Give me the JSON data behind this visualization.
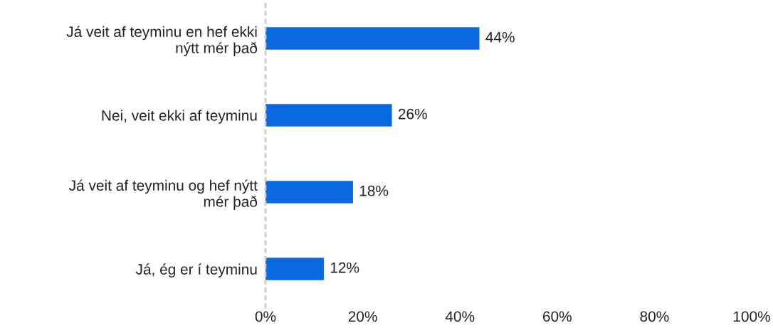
{
  "chart_data": {
    "type": "bar",
    "orientation": "horizontal",
    "categories": [
      "Já veit af teyminu en hef ekki\nnýtt mér það",
      "Nei, veit ekki af teyminu",
      "Já veit af teyminu og hef nýtt\nmér það",
      "Já, ég er í teyminu"
    ],
    "values": [
      44,
      26,
      18,
      12
    ],
    "value_labels": [
      "44%",
      "26%",
      "18%",
      "12%"
    ],
    "color": "#0a68e0",
    "xlim": [
      0,
      100
    ],
    "xticks": [
      {
        "value": 0,
        "label": "0%"
      },
      {
        "value": 20,
        "label": "20%"
      },
      {
        "value": 40,
        "label": "40%"
      },
      {
        "value": 60,
        "label": "60%"
      },
      {
        "value": 80,
        "label": "80%"
      },
      {
        "value": 100,
        "label": "100%"
      }
    ],
    "grid": false,
    "legend": false
  }
}
